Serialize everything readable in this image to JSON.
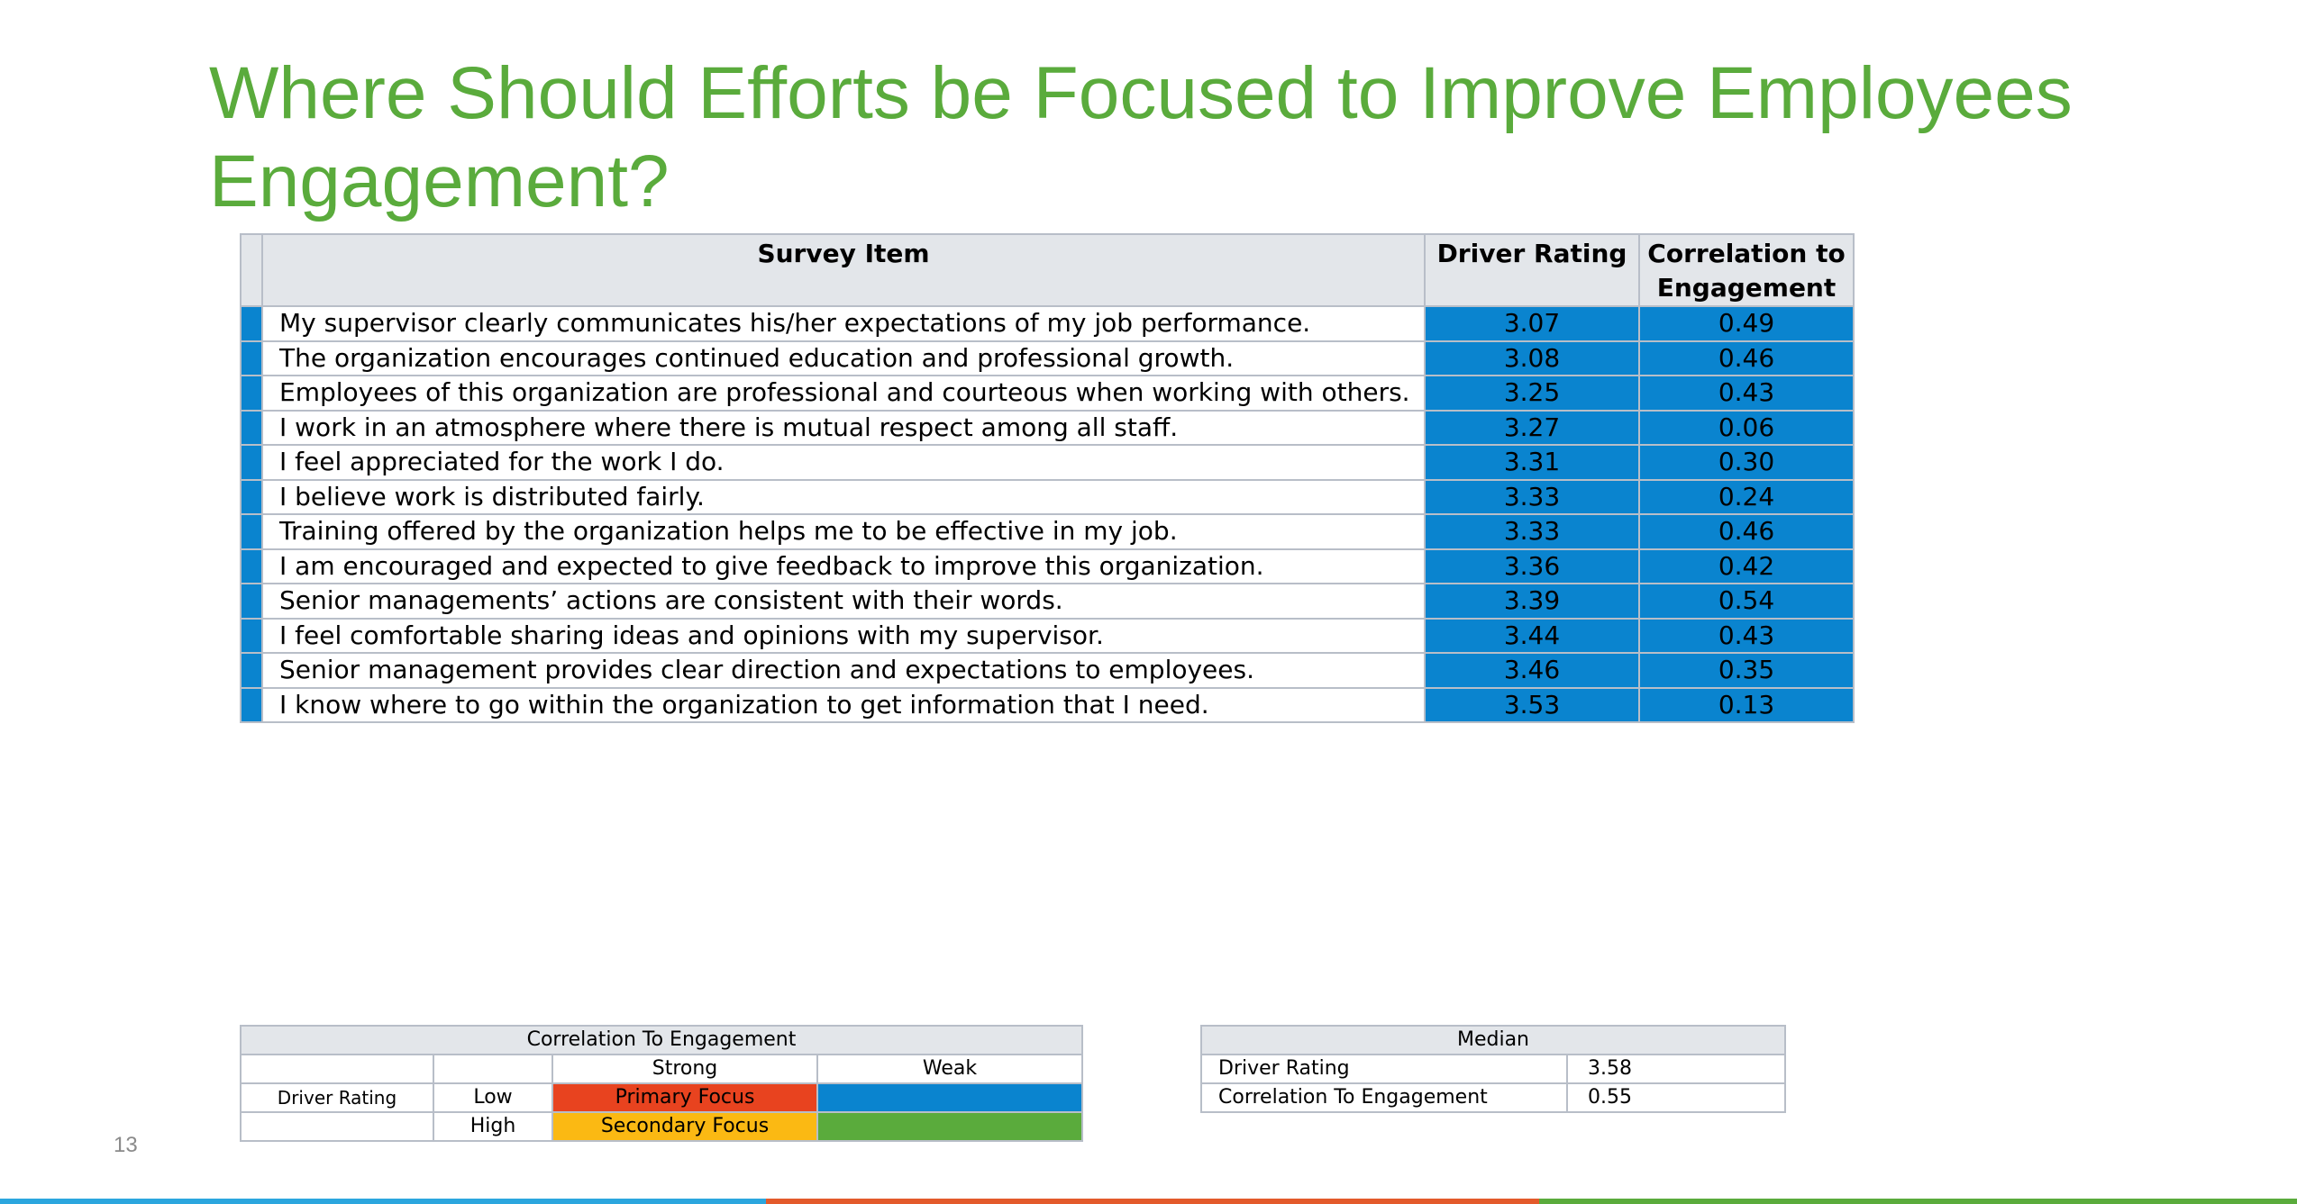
{
  "slide": {
    "title": "Where Should Efforts be Focused to Improve Employees Engagement?",
    "page_number": "13"
  },
  "survey_table": {
    "columns": [
      "Survey Item",
      "Driver Rating",
      "Correlation to Engagement"
    ],
    "rows": [
      {
        "item": "My supervisor clearly communicates his/her expectations of my job performance.",
        "driver_rating": "3.07",
        "correlation": "0.49"
      },
      {
        "item": "The organization encourages continued education and professional growth.",
        "driver_rating": "3.08",
        "correlation": "0.46"
      },
      {
        "item": "Employees of this organization are professional and courteous when working with others.",
        "driver_rating": "3.25",
        "correlation": "0.43"
      },
      {
        "item": "I work in an atmosphere where there is mutual respect among all staff.",
        "driver_rating": "3.27",
        "correlation": "0.06"
      },
      {
        "item": "I feel appreciated for the work I do.",
        "driver_rating": "3.31",
        "correlation": "0.30"
      },
      {
        "item": "I believe work is distributed fairly.",
        "driver_rating": "3.33",
        "correlation": "0.24"
      },
      {
        "item": "Training offered by the organization helps me to be effective in my job.",
        "driver_rating": "3.33",
        "correlation": "0.46"
      },
      {
        "item": "I am encouraged and expected to give feedback to improve this organization.",
        "driver_rating": "3.36",
        "correlation": "0.42"
      },
      {
        "item": "Senior managements’ actions are consistent with their words.",
        "driver_rating": "3.39",
        "correlation": "0.54"
      },
      {
        "item": "I feel comfortable sharing ideas and opinions with my supervisor.",
        "driver_rating": "3.44",
        "correlation": "0.43"
      },
      {
        "item": "Senior management provides clear direction and expectations to employees.",
        "driver_rating": "3.46",
        "correlation": "0.35"
      },
      {
        "item": "I know where to go within the organization to get information that I need.",
        "driver_rating": "3.53",
        "correlation": "0.13"
      }
    ],
    "highlight_color": "#0a84cf"
  },
  "legend_table": {
    "title": "Correlation To Engagement",
    "col_strong": "Strong",
    "col_weak": "Weak",
    "row_label": "Driver Rating",
    "low_label": "Low",
    "high_label": "High",
    "primary_focus": "Primary Focus",
    "secondary_focus": "Secondary Focus",
    "colors": {
      "primary_focus": "#e8431f",
      "secondary_focus": "#fbb913",
      "low_weak": "#0a84cf",
      "high_weak": "#5aab3c"
    }
  },
  "median_table": {
    "title": "Median",
    "rows": [
      {
        "label": "Driver Rating",
        "value": "3.58"
      },
      {
        "label": "Correlation To Engagement",
        "value": "0.55"
      }
    ]
  },
  "footer_colors": [
    "#2ba6de",
    "#e35a2b",
    "#5aab3c"
  ]
}
